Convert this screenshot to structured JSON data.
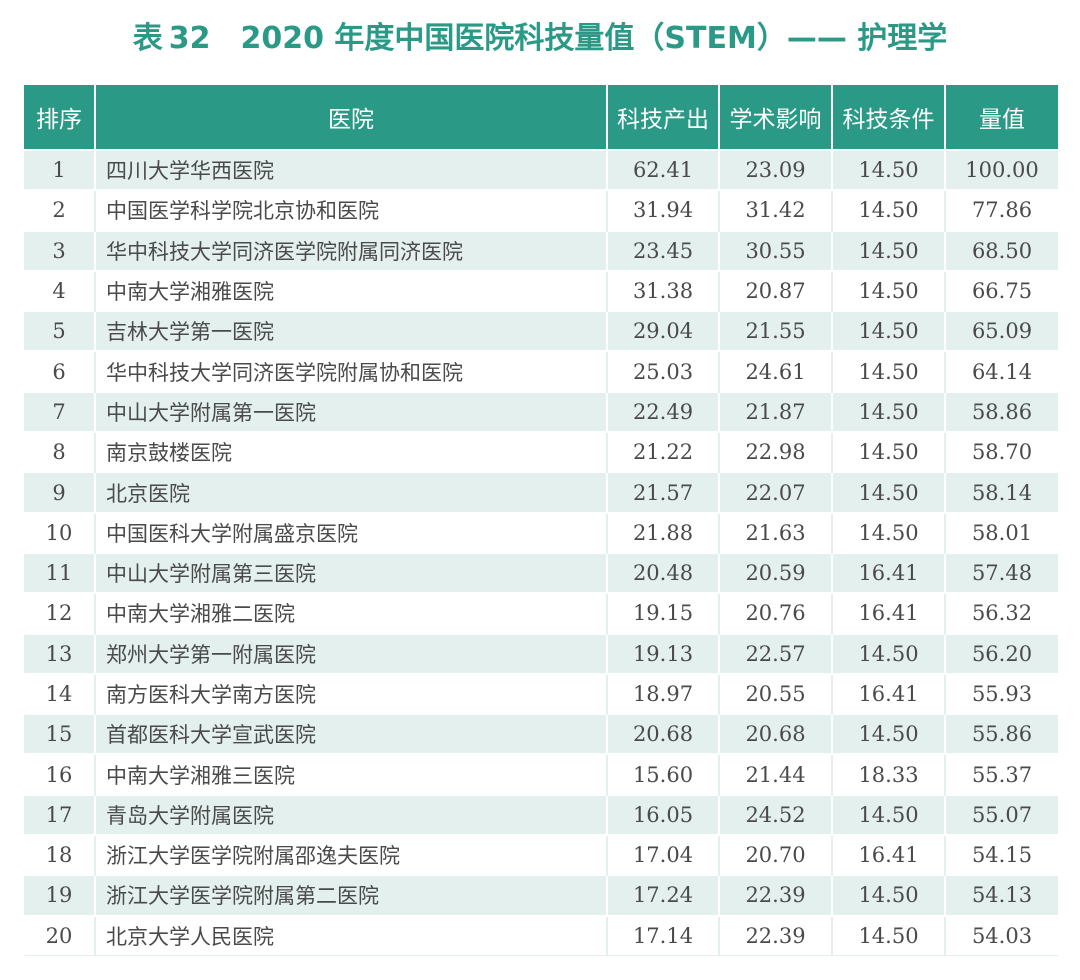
{
  "title": {
    "prefix": "表",
    "number": "32",
    "text": "2020 年度中国医院科技量值（STEM）—— 护理学"
  },
  "headers": {
    "rank": "排序",
    "hospital": "医院",
    "output": "科技产出",
    "academic": "学术影响",
    "condition": "科技条件",
    "value": "量值"
  },
  "rows": [
    {
      "rank": "1",
      "hospital": "四川大学华西医院",
      "output": "62.41",
      "academic": "23.09",
      "condition": "14.50",
      "value": "100.00"
    },
    {
      "rank": "2",
      "hospital": "中国医学科学院北京协和医院",
      "output": "31.94",
      "academic": "31.42",
      "condition": "14.50",
      "value": "77.86"
    },
    {
      "rank": "3",
      "hospital": "华中科技大学同济医学院附属同济医院",
      "output": "23.45",
      "academic": "30.55",
      "condition": "14.50",
      "value": "68.50"
    },
    {
      "rank": "4",
      "hospital": "中南大学湘雅医院",
      "output": "31.38",
      "academic": "20.87",
      "condition": "14.50",
      "value": "66.75"
    },
    {
      "rank": "5",
      "hospital": "吉林大学第一医院",
      "output": "29.04",
      "academic": "21.55",
      "condition": "14.50",
      "value": "65.09"
    },
    {
      "rank": "6",
      "hospital": "华中科技大学同济医学院附属协和医院",
      "output": "25.03",
      "academic": "24.61",
      "condition": "14.50",
      "value": "64.14"
    },
    {
      "rank": "7",
      "hospital": "中山大学附属第一医院",
      "output": "22.49",
      "academic": "21.87",
      "condition": "14.50",
      "value": "58.86"
    },
    {
      "rank": "8",
      "hospital": "南京鼓楼医院",
      "output": "21.22",
      "academic": "22.98",
      "condition": "14.50",
      "value": "58.70"
    },
    {
      "rank": "9",
      "hospital": "北京医院",
      "output": "21.57",
      "academic": "22.07",
      "condition": "14.50",
      "value": "58.14"
    },
    {
      "rank": "10",
      "hospital": "中国医科大学附属盛京医院",
      "output": "21.88",
      "academic": "21.63",
      "condition": "14.50",
      "value": "58.01"
    },
    {
      "rank": "11",
      "hospital": "中山大学附属第三医院",
      "output": "20.48",
      "academic": "20.59",
      "condition": "16.41",
      "value": "57.48"
    },
    {
      "rank": "12",
      "hospital": "中南大学湘雅二医院",
      "output": "19.15",
      "academic": "20.76",
      "condition": "16.41",
      "value": "56.32"
    },
    {
      "rank": "13",
      "hospital": "郑州大学第一附属医院",
      "output": "19.13",
      "academic": "22.57",
      "condition": "14.50",
      "value": "56.20"
    },
    {
      "rank": "14",
      "hospital": "南方医科大学南方医院",
      "output": "18.97",
      "academic": "20.55",
      "condition": "16.41",
      "value": "55.93"
    },
    {
      "rank": "15",
      "hospital": "首都医科大学宣武医院",
      "output": "20.68",
      "academic": "20.68",
      "condition": "14.50",
      "value": "55.86"
    },
    {
      "rank": "16",
      "hospital": "中南大学湘雅三医院",
      "output": "15.60",
      "academic": "21.44",
      "condition": "18.33",
      "value": "55.37"
    },
    {
      "rank": "17",
      "hospital": "青岛大学附属医院",
      "output": "16.05",
      "academic": "24.52",
      "condition": "14.50",
      "value": "55.07"
    },
    {
      "rank": "18",
      "hospital": "浙江大学医学院附属邵逸夫医院",
      "output": "17.04",
      "academic": "20.70",
      "condition": "16.41",
      "value": "54.15"
    },
    {
      "rank": "19",
      "hospital": "浙江大学医学院附属第二医院",
      "output": "17.24",
      "academic": "22.39",
      "condition": "14.50",
      "value": "54.13"
    },
    {
      "rank": "20",
      "hospital": "北京大学人民医院",
      "output": "17.14",
      "academic": "22.39",
      "condition": "14.50",
      "value": "54.03"
    }
  ]
}
